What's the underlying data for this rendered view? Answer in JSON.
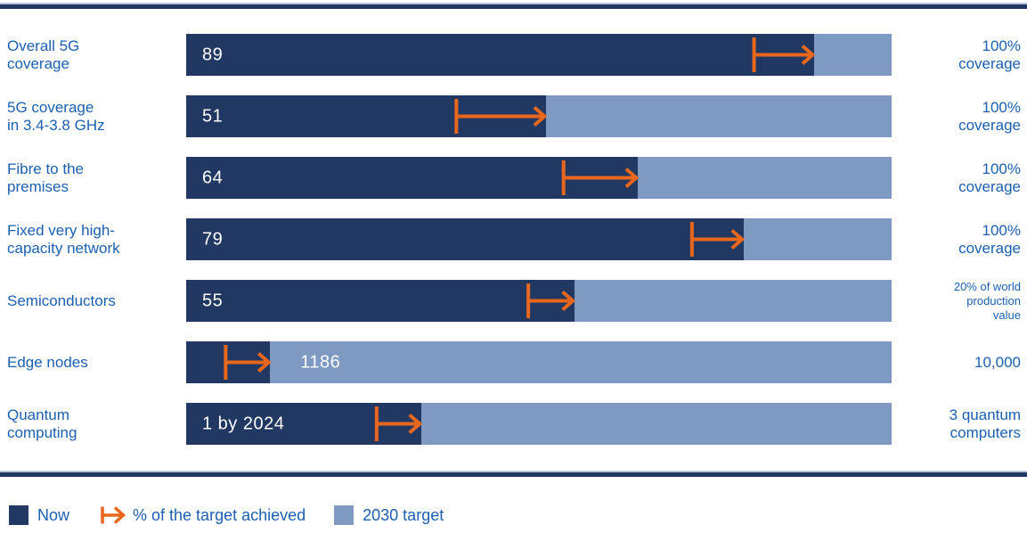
{
  "chart_data": {
    "type": "bar",
    "orientation": "horizontal",
    "description": "Progress toward 2030 digital targets: dark segment shows current value, light segment shows remaining gap to the 2030 target, orange arrow marks % of the target achieved",
    "colors": {
      "now": "#203862",
      "target": "#7e9ac3",
      "arrow": "#e8671c",
      "text": "#1c5fb0",
      "rulelight": "#b7c6db",
      "value_text": "#ffffff"
    },
    "axis": {
      "track_pct_range": [
        0,
        100
      ],
      "gridlines": false
    },
    "legend_position": "bottom-left",
    "legend": [
      {
        "label": "Now",
        "swatch": "square-dark"
      },
      {
        "label": "% of the target achieved",
        "swatch": "arrow"
      },
      {
        "label": "2030 target",
        "swatch": "square-light"
      }
    ],
    "rows": [
      {
        "label": "Overall 5G\ncoverage",
        "value_label": "89",
        "now_pct": 89,
        "arrow_from_pct": 80.5,
        "arrow_to_pct": 89,
        "target_label": "100%\ncoverage",
        "value_on": "dark",
        "target_label_size": "normal"
      },
      {
        "label": "5G coverage\nin 3.4-3.8 GHz",
        "value_label": "51",
        "now_pct": 51,
        "arrow_from_pct": 38.3,
        "arrow_to_pct": 51,
        "target_label": "100%\ncoverage",
        "value_on": "dark",
        "target_label_size": "normal"
      },
      {
        "label": "Fibre to the\npremises",
        "value_label": "64",
        "now_pct": 64,
        "arrow_from_pct": 53.5,
        "arrow_to_pct": 64,
        "target_label": "100%\ncoverage",
        "value_on": "dark",
        "target_label_size": "normal"
      },
      {
        "label": "Fixed very high-\ncapacity network",
        "value_label": "79",
        "now_pct": 79,
        "arrow_from_pct": 71.7,
        "arrow_to_pct": 79,
        "target_label": "100%\ncoverage",
        "value_on": "dark",
        "target_label_size": "normal"
      },
      {
        "label": "Semiconductors",
        "value_label": "55",
        "now_pct": 55,
        "arrow_from_pct": 48.5,
        "arrow_to_pct": 55,
        "target_label": "20% of world\nproduction\nvalue",
        "value_on": "dark",
        "target_label_size": "small"
      },
      {
        "label": "Edge nodes",
        "value_label": "1186",
        "now_pct": 11.9,
        "arrow_from_pct": 5.6,
        "arrow_to_pct": 11.9,
        "target_label": "10,000",
        "value_on": "light",
        "target_label_size": "normal"
      },
      {
        "label": "Quantum\ncomputing",
        "value_label": "1 by 2024",
        "now_pct": 33.3,
        "arrow_from_pct": 27,
        "arrow_to_pct": 33.3,
        "target_label": "3 quantum\ncomputers",
        "value_on": "dark",
        "target_label_size": "normal"
      }
    ]
  }
}
